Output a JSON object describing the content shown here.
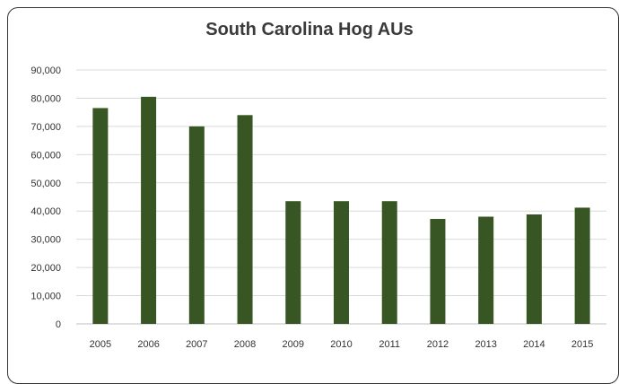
{
  "chart_data": {
    "type": "bar",
    "title": "South Carolina Hog AUs",
    "xlabel": "",
    "ylabel": "",
    "categories": [
      "2005",
      "2006",
      "2007",
      "2008",
      "2009",
      "2010",
      "2011",
      "2012",
      "2013",
      "2014",
      "2015"
    ],
    "values": [
      76500,
      80500,
      70000,
      74000,
      43500,
      43500,
      43500,
      37200,
      38000,
      38800,
      41200
    ],
    "ylim": [
      0,
      90000
    ],
    "yticks": [
      0,
      10000,
      20000,
      30000,
      40000,
      50000,
      60000,
      70000,
      80000,
      90000
    ],
    "ytick_labels": [
      "0",
      "10,000",
      "20,000",
      "30,000",
      "40,000",
      "50,000",
      "60,000",
      "70,000",
      "80,000",
      "90,000"
    ],
    "grid": true,
    "legend": "none",
    "colors": {
      "bar": "#375623",
      "grid": "#d9d9d9",
      "axis": "#bfbfbf"
    }
  }
}
